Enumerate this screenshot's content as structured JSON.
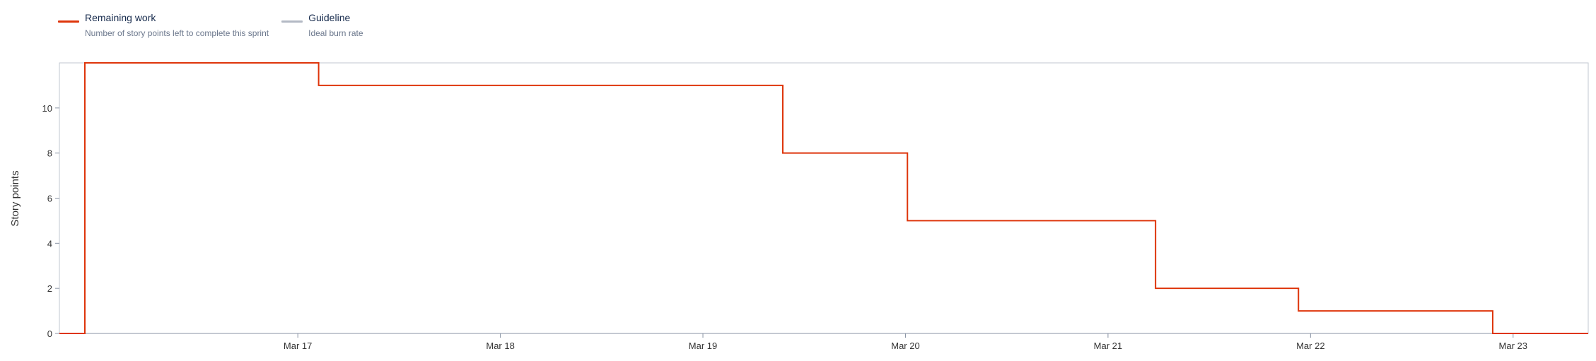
{
  "legend": [
    {
      "label": "Remaining work",
      "description": "Number of story points left to complete this sprint",
      "color": "#de350b"
    },
    {
      "label": "Guideline",
      "description": "Ideal burn rate",
      "color": "#b3b9c4"
    }
  ],
  "chart_data": {
    "type": "line",
    "step": true,
    "title": "",
    "xlabel": "",
    "ylabel": "Story points",
    "x_ticks": [
      "Mar 17",
      "Mar 18",
      "Mar 19",
      "Mar 20",
      "Mar 21",
      "Mar 22",
      "Mar 23"
    ],
    "y_ticks": [
      0,
      2,
      4,
      6,
      8,
      10
    ],
    "xlim": [
      "Mar 16 07:45",
      "Mar 23 20:54"
    ],
    "ylim": [
      0,
      12
    ],
    "grid": false,
    "legend_position": "top-left",
    "series": [
      {
        "name": "Remaining work",
        "color": "#de350b",
        "points": [
          {
            "x": "Mar 16 07:45",
            "y": 0
          },
          {
            "x": "Mar 16 10:46",
            "y": 12
          },
          {
            "x": "Mar 17 14:28",
            "y": 11
          },
          {
            "x": "Mar 19 21:28",
            "y": 8
          },
          {
            "x": "Mar 20 12:14",
            "y": 5
          },
          {
            "x": "Mar 21 17:38",
            "y": 2
          },
          {
            "x": "Mar 22 10:34",
            "y": 1
          },
          {
            "x": "Mar 23 09:35",
            "y": 0
          },
          {
            "x": "Mar 23 20:54",
            "y": 0
          }
        ]
      }
    ]
  }
}
